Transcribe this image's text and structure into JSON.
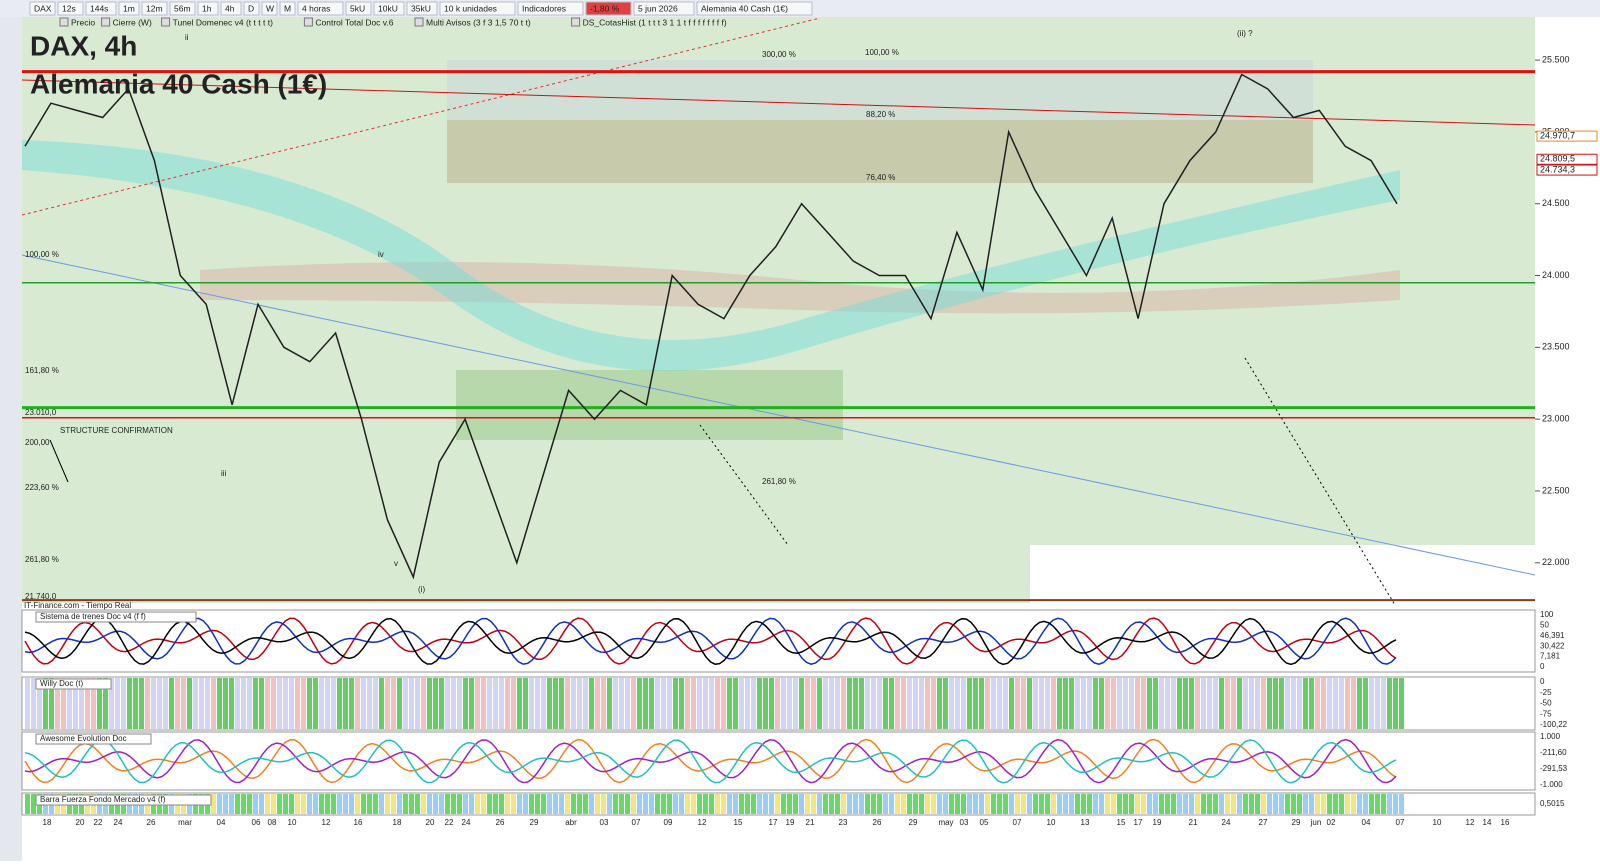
{
  "toolbar": {
    "items": [
      "DAX",
      "12s",
      "144s",
      "1m",
      "12m",
      "56m",
      "1h",
      "4h",
      "D",
      "W",
      "M",
      "4 horas",
      "5kU",
      "10kU",
      "35kU",
      "10 k unidades",
      "Indicadores",
      "-1,80 %",
      "5 jun 2026",
      "Alemania 40 Cash (1€)"
    ]
  },
  "indicators_bar": {
    "items": [
      "Precio",
      "Cierre (W)",
      "Tunel Domenec v4 (t t t t t)",
      "Control Total Doc v.6",
      "Multi Avisos (3 f 3 1,5 70 t t)",
      "DS_CotasHist (1 t t t 3 1 1 t f f f f f f f f)"
    ]
  },
  "chart": {
    "title": "DAX, 4h",
    "subtitle": "Alemania 40 Cash (1€)",
    "source": "IT-Finance.com - Tiempo Real",
    "ylim": [
      21720,
      25800
    ],
    "yticks": [
      {
        "value": 25500,
        "label": "25.500"
      },
      {
        "value": 25000,
        "label": "25.000"
      },
      {
        "value": 24500,
        "label": "24.500"
      },
      {
        "value": 24000,
        "label": "24.000"
      },
      {
        "value": 23500,
        "label": "23.500"
      },
      {
        "value": 23000,
        "label": "23.000"
      },
      {
        "value": 22500,
        "label": "22.500"
      },
      {
        "value": 22000,
        "label": "22.000"
      }
    ],
    "price_tags": [
      {
        "value": 24970.7,
        "label": "24.970,7",
        "color": "#e08a2a"
      },
      {
        "value": 24809.5,
        "label": "24.809,5",
        "color": "#d01010"
      },
      {
        "value": 24734.3,
        "label": "24.734,3",
        "color": "#d01010"
      }
    ],
    "levels": [
      {
        "value": 25420,
        "color": "#e01010",
        "width": 3
      },
      {
        "value": 23950,
        "color": "#20a020",
        "width": 1.5
      },
      {
        "value": 23080,
        "color": "#20b020",
        "width": 3
      },
      {
        "value": 23010,
        "color": "#e01010",
        "width": 1.5
      },
      {
        "value": 21740,
        "color": "#8b3a1a",
        "width": 2
      }
    ],
    "price_path": {
      "color": "#202020",
      "values": [
        24900,
        25200,
        25150,
        25100,
        25300,
        24800,
        24000,
        23800,
        23100,
        23800,
        23500,
        23400,
        23600,
        23000,
        22300,
        21900,
        22700,
        23000,
        22500,
        22000,
        22600,
        23200,
        23000,
        23200,
        23100,
        24000,
        23800,
        23700,
        24000,
        24200,
        24500,
        24300,
        24100,
        24000,
        24000,
        23700,
        24300,
        23900,
        25000,
        24600,
        24300,
        24000,
        24400,
        23700,
        24500,
        24800,
        25000,
        25400,
        25300,
        25100,
        25150,
        24900,
        24800,
        24500
      ]
    },
    "annotations": [
      "STRUCTURE CONFIRMATION",
      "300,00 %",
      "100,00 %",
      "88,20 %",
      "76,40 %",
      "261,80 %",
      "100,00 %",
      "161,80 %",
      "23.010,0",
      "200,00",
      "223,60 %",
      "261,80 %",
      "21.740,0",
      "ii",
      "iv",
      "iii",
      "v",
      "(i)",
      "(ii) ?"
    ],
    "x_labels": [
      "18",
      "20",
      "22",
      "24",
      "26",
      "mar",
      "04",
      "06",
      "08",
      "10",
      "12",
      "16",
      "18",
      "20",
      "22",
      "24",
      "26",
      "29",
      "abr",
      "03",
      "07",
      "09",
      "12",
      "15",
      "17",
      "19",
      "21",
      "23",
      "26",
      "29",
      "may",
      "03",
      "05",
      "07",
      "10",
      "13",
      "15",
      "17",
      "19",
      "21",
      "24",
      "27",
      "29",
      "jun",
      "02",
      "04",
      "07",
      "10",
      "12",
      "14",
      "16"
    ]
  },
  "panels": [
    {
      "title": "Sistema de trenes Doc v4 (f f)",
      "axis_labels": [
        "100",
        "50",
        "46,391",
        "30,422",
        "7,181",
        "0"
      ]
    },
    {
      "title": "Willy Doc (t)",
      "axis_labels": [
        "0",
        "-25",
        "-50",
        "-75",
        "-100,22"
      ]
    },
    {
      "title": "Awesome Evolution Doc",
      "axis_labels": [
        "1.000",
        "-211,60",
        "-291,53",
        "-1.000"
      ]
    },
    {
      "title": "Barra Fuerza Fondo Mercado v4 (f)",
      "axis_labels": [
        "0,5015"
      ]
    }
  ]
}
